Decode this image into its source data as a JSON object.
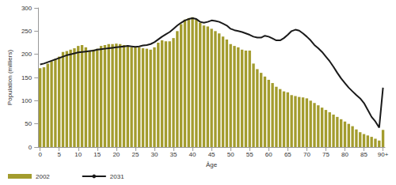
{
  "chart_data": {
    "type": "bar",
    "x_label": "Âge",
    "y_label": "Population (milliers)",
    "categories": [
      "0",
      null,
      null,
      null,
      null,
      "5",
      null,
      null,
      null,
      null,
      "10",
      null,
      null,
      null,
      null,
      "15",
      null,
      null,
      null,
      null,
      "20",
      null,
      null,
      null,
      null,
      "25",
      null,
      null,
      null,
      null,
      "30",
      null,
      null,
      null,
      null,
      "35",
      null,
      null,
      null,
      null,
      "40",
      null,
      null,
      null,
      null,
      "45",
      null,
      null,
      null,
      null,
      "50",
      null,
      null,
      null,
      null,
      "55",
      null,
      null,
      null,
      null,
      "60",
      null,
      null,
      null,
      null,
      "65",
      null,
      null,
      null,
      null,
      "70",
      null,
      null,
      null,
      null,
      "75",
      null,
      null,
      null,
      null,
      "80",
      null,
      null,
      null,
      null,
      "85",
      null,
      null,
      null,
      null,
      "90+"
    ],
    "series": [
      {
        "name": "2002",
        "type": "bar",
        "color": "#a39c2e",
        "values": [
          170,
          172,
          180,
          185,
          190,
          195,
          205,
          207,
          210,
          213,
          218,
          220,
          215,
          208,
          210,
          212,
          218,
          220,
          222,
          222,
          223,
          222,
          220,
          218,
          215,
          215,
          215,
          213,
          212,
          210,
          215,
          225,
          230,
          228,
          228,
          235,
          250,
          265,
          275,
          278,
          280,
          275,
          268,
          262,
          260,
          255,
          250,
          245,
          238,
          232,
          222,
          218,
          215,
          210,
          208,
          208,
          180,
          168,
          160,
          152,
          145,
          138,
          130,
          125,
          120,
          118,
          112,
          110,
          108,
          107,
          105,
          100,
          95,
          90,
          85,
          80,
          75,
          70,
          65,
          60,
          55,
          50,
          45,
          38,
          32,
          28,
          25,
          22,
          18,
          14,
          37
        ]
      },
      {
        "name": "2031",
        "type": "line",
        "color": "#1a1a1a",
        "line_style": "solid",
        "marker": "none",
        "values": [
          178,
          180,
          183,
          186,
          189,
          192,
          195,
          198,
          200,
          202,
          204,
          205,
          206,
          207,
          208,
          210,
          211,
          212,
          213,
          214,
          215,
          216,
          217,
          218,
          217,
          216,
          217,
          219,
          220,
          222,
          226,
          232,
          238,
          243,
          248,
          255,
          262,
          268,
          273,
          276,
          278,
          276,
          270,
          268,
          270,
          273,
          272,
          270,
          266,
          262,
          255,
          252,
          250,
          248,
          245,
          242,
          238,
          236,
          236,
          240,
          238,
          234,
          230,
          230,
          235,
          242,
          250,
          253,
          251,
          245,
          238,
          230,
          220,
          213,
          205,
          195,
          185,
          173,
          160,
          148,
          138,
          128,
          120,
          112,
          105,
          95,
          80,
          65,
          55,
          42,
          128
        ]
      }
    ],
    "ylim": [
      0,
      300
    ],
    "yticks": [
      0,
      50,
      100,
      150,
      200,
      250,
      300
    ],
    "grid": false,
    "legend": "lower left"
  }
}
